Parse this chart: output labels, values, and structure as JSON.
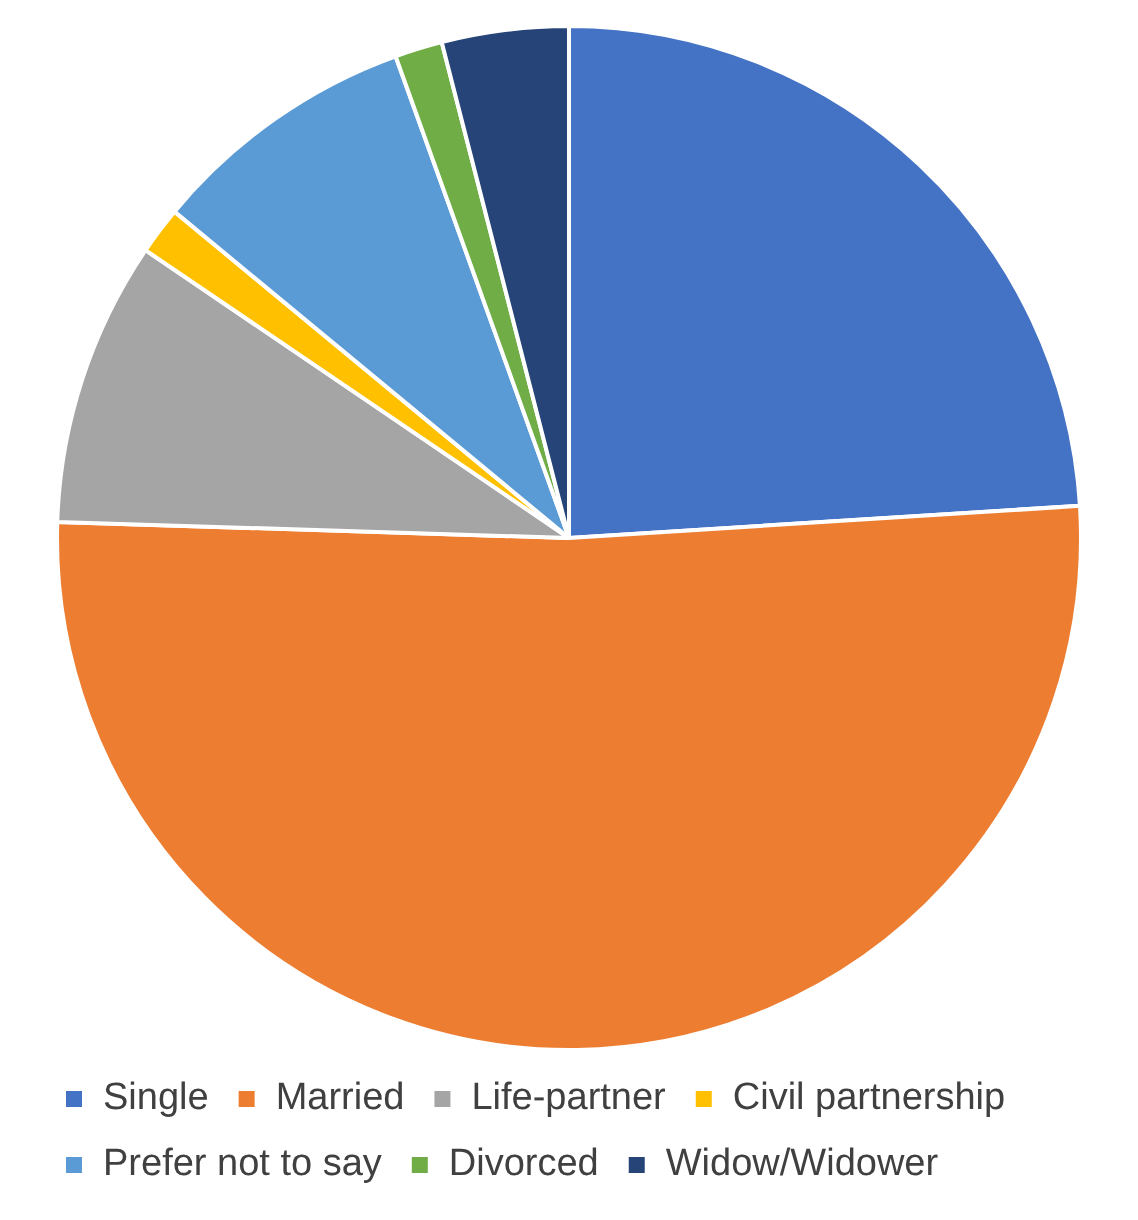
{
  "chart_data": {
    "type": "pie",
    "categories": [
      "Single",
      "Married",
      "Life-partner",
      "Civil partnership",
      "Prefer not to say",
      "Divorced",
      "Widow/Widower"
    ],
    "values": [
      24,
      51.5,
      9,
      1.5,
      8.5,
      1.5,
      4
    ],
    "colors": [
      "#4472c4",
      "#ed7d31",
      "#a5a5a5",
      "#ffc000",
      "#5b9bd5",
      "#70ad47",
      "#264478"
    ],
    "legend": "bottom"
  }
}
